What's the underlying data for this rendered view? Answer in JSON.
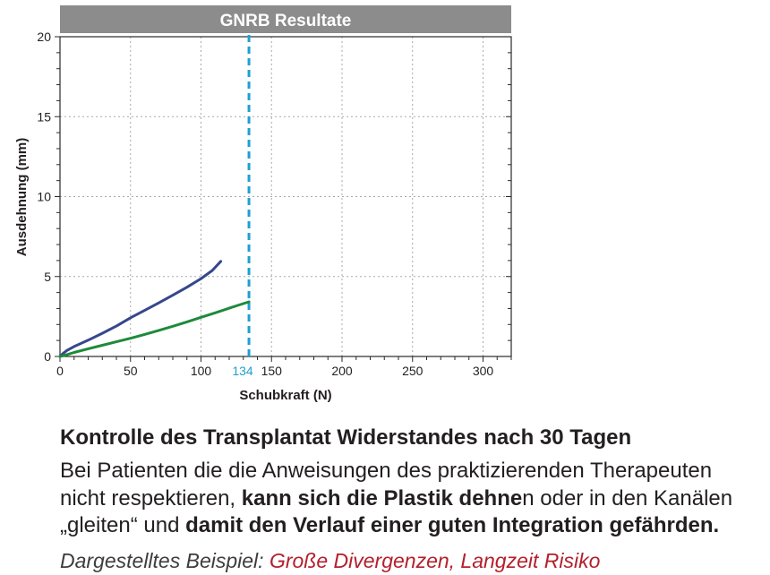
{
  "chart_data": {
    "type": "line",
    "title": "GNRB Resultate",
    "xlabel": "Schubkraft (N)",
    "ylabel": "Ausdehnung (mm)",
    "xlim": [
      0,
      320
    ],
    "ylim": [
      0,
      20
    ],
    "xticks": [
      0,
      50,
      100,
      150,
      200,
      250,
      300
    ],
    "yticks": [
      0,
      5,
      10,
      15,
      20
    ],
    "grid": true,
    "title_bar_color": "#8c8c8c",
    "series": [
      {
        "color": "#37478c",
        "x": [
          0,
          2,
          5,
          10,
          20,
          30,
          40,
          50,
          60,
          70,
          80,
          90,
          100,
          108,
          114
        ],
        "y": [
          0,
          0.18,
          0.38,
          0.62,
          1.02,
          1.45,
          1.9,
          2.42,
          2.88,
          3.35,
          3.83,
          4.33,
          4.87,
          5.38,
          5.95
        ]
      },
      {
        "color": "#1e8a3b",
        "x": [
          0,
          5,
          10,
          20,
          30,
          40,
          50,
          60,
          70,
          80,
          90,
          100,
          110,
          120,
          127,
          134
        ],
        "y": [
          0,
          0.12,
          0.25,
          0.48,
          0.7,
          0.92,
          1.14,
          1.38,
          1.63,
          1.89,
          2.16,
          2.45,
          2.73,
          3.02,
          3.22,
          3.42
        ]
      }
    ],
    "reference_line": {
      "x": 134,
      "label": "134",
      "color": "#1f9fd3"
    }
  },
  "summary": {
    "heading": "Kontrolle des Transplantat Widerstandes nach 30 Tagen",
    "paragraph_lines": [
      [
        "Bei Patienten die die Anweisungen des praktizierenden Therapeuten"
      ],
      [
        "nicht respektieren, ",
        "kann sich die Plastik dehne",
        "n oder in den Kanälen"
      ],
      [
        "„gleiten“ und ",
        "damit den Verlauf einer guten Integration gefährden."
      ]
    ],
    "example_label": "Dargestelltes Beispiel: ",
    "example_value": "Große Divergenzen, Langzeit Risiko",
    "example_value_color": "#b3202c"
  }
}
